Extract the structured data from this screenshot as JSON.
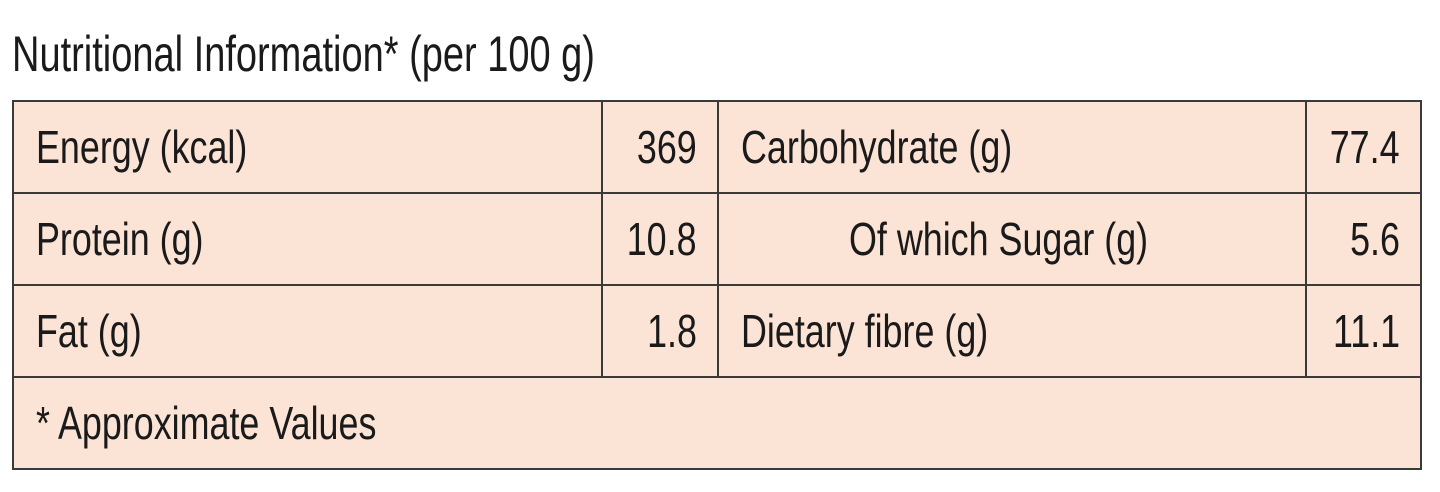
{
  "title": "Nutritional Information* (per 100 g)",
  "table": {
    "rows": [
      [
        "Energy (kcal)",
        369,
        "Carbohydrate (g)",
        77.4
      ],
      [
        "Protein (g)",
        10.8,
        "Of which Sugar (g)",
        5.6
      ],
      [
        "Fat (g)",
        1.8,
        "Dietary fibre (g)",
        11.1
      ]
    ]
  },
  "footnote": "* Approximate Values"
}
